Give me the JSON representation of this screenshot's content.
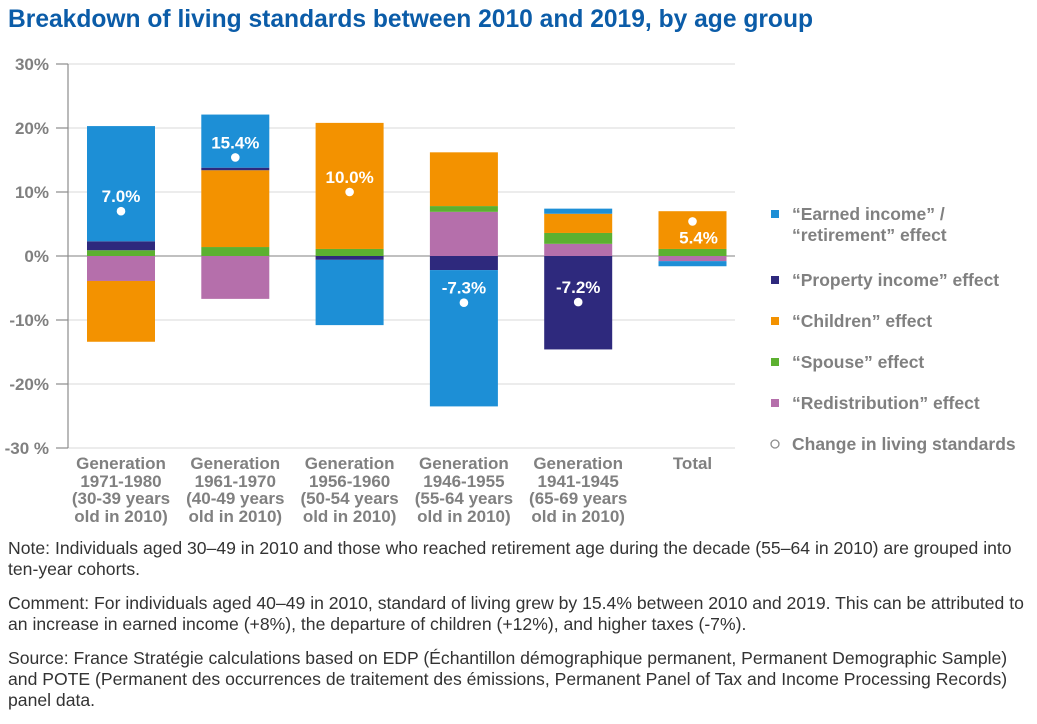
{
  "title": "Breakdown of living standards between 2010 and 2019, by age group",
  "chart_data": {
    "type": "bar",
    "stacked": true,
    "title": "Breakdown of living standards between 2010 and 2019, by age group",
    "xlabel": "",
    "ylabel": "",
    "ylim": [
      -30,
      30
    ],
    "grid": true,
    "legend_position": "right",
    "categories": [
      "Generation\n1971-1980\n(30-39 years\nold in 2010)",
      "Generation\n1961-1970\n(40-49 years\nold in 2010)",
      "Generation\n1956-1960\n(50-54 years\nold in 2010)",
      "Generation\n1946-1955\n(55-64 years\nold in 2010)",
      "Generation\n1941-1945\n(65-69 years\nold in 2010)",
      "Total"
    ],
    "y_ticks": [
      {
        "value": 30,
        "label": "30%"
      },
      {
        "value": 20,
        "label": "20%"
      },
      {
        "value": 10,
        "label": "10%"
      },
      {
        "value": 0,
        "label": "0%"
      },
      {
        "value": -10,
        "label": "-10%"
      },
      {
        "value": -20,
        "label": "-20%"
      },
      {
        "value": -30,
        "label": "-30 %"
      }
    ],
    "series": [
      {
        "name": "“Earned income” /\n“retirement” effect",
        "color": "#1d8fd6",
        "values": [
          18.0,
          8.3,
          -10.2,
          -21.3,
          0.8,
          -0.8
        ]
      },
      {
        "name": "“Property income” effect",
        "color": "#2e297d",
        "values": [
          1.4,
          0.4,
          -0.6,
          -2.2,
          -14.6,
          0
        ]
      },
      {
        "name": "“Children” effect",
        "color": "#f39200",
        "values": [
          -9.5,
          12.0,
          19.7,
          8.4,
          3.0,
          5.9
        ]
      },
      {
        "name": "“Spouse” effect",
        "color": "#5cb030",
        "values": [
          0.9,
          1.4,
          1.1,
          0.9,
          1.7,
          1.1
        ]
      },
      {
        "name": "“Redistribution” effect",
        "color": "#b56fab",
        "values": [
          -3.9,
          -6.7,
          0,
          6.9,
          1.9,
          -0.8
        ]
      }
    ],
    "change": {
      "name": "Change in living standards",
      "color": "#ffffff",
      "values": [
        7.0,
        15.4,
        10.0,
        -7.3,
        -7.2,
        5.4
      ],
      "labels": [
        "7.0%",
        "15.4%",
        "10.0%",
        "-7.3%",
        "-7.2%",
        "5.4%"
      ]
    }
  },
  "notes": {
    "note": "Note: Individuals aged 30–49 in 2010 and those who reached retirement age during the decade (55–64 in 2010) are grouped into ten-year cohorts.",
    "comment": "Comment: For individuals aged 40–49 in 2010, standard of living grew by 15.4% between 2010 and 2019. This can be attributed to an increase in earned income (+8%), the departure of children (+12%), and higher taxes (-7%).",
    "source": "Source: France Stratégie calculations based on EDP (Échantillon démographique permanent, Permanent Demographic Sample) and POTE (Permanent des occurrences de traitement des émissions, Permanent Panel of Tax and Income Processing Records) panel data."
  }
}
